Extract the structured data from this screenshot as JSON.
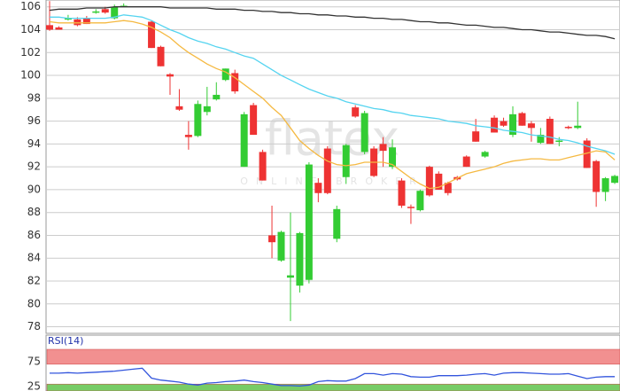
{
  "chart_data": [
    {
      "type": "candlestick",
      "watermark": "flatex",
      "watermark_sub": "ONLINE BROKER",
      "up_color": "#33cc33",
      "down_color": "#ee3333",
      "ylim": [
        77.5,
        106.6
      ],
      "yticks": [
        78,
        80,
        82,
        84,
        86,
        88,
        90,
        92,
        94,
        96,
        98,
        100,
        102,
        104,
        106
      ],
      "grid": true,
      "open": [
        104.4,
        104.2,
        104.9,
        104.9,
        105.0,
        105.6,
        105.8,
        105.0,
        106.1,
        null,
        null,
        104.7,
        102.5,
        100.1,
        97.3,
        94.8,
        94.7,
        96.8,
        97.9,
        99.6,
        100.2,
        92.0,
        97.4,
        93.3,
        86.0,
        83.8,
        82.3,
        81.6,
        82.1,
        90.6,
        93.6,
        85.7,
        91.1,
        97.2,
        93.3,
        93.6,
        94.0,
        92.0,
        90.8,
        88.5,
        88.2,
        92.0,
        91.4,
        90.6,
        91.1,
        92.9,
        95.1,
        92.9,
        96.3,
        96.0,
        94.8,
        96.7,
        95.8,
        94.1,
        96.2,
        94.3,
        95.5,
        95.4,
        94.3,
        92.5,
        89.8,
        90.6
      ],
      "high": [
        106.5,
        104.3,
        105.3,
        105.1,
        105.2,
        105.8,
        106.0,
        106.2,
        106.3,
        null,
        null,
        104.8,
        102.6,
        100.2,
        98.8,
        96.0,
        97.8,
        99.0,
        99.4,
        100.6,
        100.5,
        96.8,
        97.6,
        93.5,
        88.6,
        86.4,
        88.0,
        86.3,
        92.4,
        91.0,
        93.8,
        88.6,
        94.0,
        97.4,
        96.9,
        93.8,
        94.6,
        94.4,
        91.0,
        88.7,
        90.0,
        92.1,
        91.6,
        90.7,
        91.2,
        93.0,
        96.2,
        93.4,
        96.5,
        96.3,
        97.3,
        96.8,
        96.0,
        95.4,
        96.4,
        94.6,
        95.6,
        97.7,
        94.5,
        92.6,
        91.1,
        91.3
      ],
      "low": [
        103.9,
        104.0,
        104.8,
        104.3,
        104.5,
        105.4,
        105.4,
        104.9,
        106.0,
        null,
        null,
        102.4,
        100.8,
        98.3,
        96.9,
        93.5,
        94.6,
        96.5,
        97.8,
        99.5,
        98.4,
        92.0,
        94.8,
        90.8,
        84.0,
        83.7,
        78.5,
        81.0,
        81.8,
        88.9,
        89.6,
        85.4,
        90.5,
        96.3,
        93.1,
        91.1,
        92.0,
        91.8,
        88.4,
        87.0,
        88.1,
        89.4,
        90.0,
        89.5,
        90.8,
        92.0,
        94.2,
        92.8,
        95.0,
        95.5,
        94.6,
        95.6,
        94.2,
        94.0,
        94.0,
        93.8,
        95.3,
        95.3,
        91.9,
        88.5,
        89.0,
        90.5
      ],
      "close": [
        104.0,
        104.0,
        105.0,
        104.4,
        104.5,
        105.6,
        105.5,
        106.0,
        106.1,
        null,
        null,
        102.4,
        100.8,
        99.9,
        97.0,
        94.6,
        97.5,
        97.3,
        98.3,
        100.6,
        98.6,
        96.6,
        94.8,
        90.8,
        85.4,
        86.3,
        82.5,
        86.2,
        92.2,
        89.7,
        89.7,
        88.3,
        93.9,
        96.4,
        96.7,
        91.2,
        93.4,
        93.7,
        88.6,
        88.4,
        89.9,
        89.5,
        90.0,
        89.7,
        90.9,
        92.0,
        94.2,
        93.3,
        95.0,
        95.6,
        96.6,
        95.6,
        95.4,
        94.8,
        94.0,
        94.3,
        95.4,
        95.6,
        91.9,
        89.8,
        91.0,
        91.2
      ],
      "series": [
        {
          "color": "#333333",
          "values": [
            105.7,
            105.8,
            105.8,
            105.8,
            105.9,
            105.9,
            105.9,
            106.0,
            106.0,
            106.0,
            106.0,
            106.0,
            106.0,
            105.9,
            105.9,
            105.9,
            105.9,
            105.9,
            105.8,
            105.8,
            105.8,
            105.7,
            105.7,
            105.6,
            105.6,
            105.5,
            105.5,
            105.4,
            105.4,
            105.3,
            105.3,
            105.2,
            105.2,
            105.1,
            105.1,
            105.0,
            105.0,
            104.9,
            104.9,
            104.8,
            104.7,
            104.7,
            104.6,
            104.6,
            104.5,
            104.4,
            104.4,
            104.3,
            104.2,
            104.2,
            104.1,
            104.0,
            104.0,
            103.9,
            103.8,
            103.8,
            103.7,
            103.6,
            103.5,
            103.5,
            103.4,
            103.2
          ]
        },
        {
          "color": "#55d4f0",
          "values": [
            105.1,
            105.1,
            105.0,
            105.0,
            105.0,
            105.0,
            105.0,
            105.1,
            105.3,
            105.2,
            105.1,
            104.8,
            104.4,
            104.0,
            103.7,
            103.3,
            103.0,
            102.8,
            102.5,
            102.3,
            102.0,
            101.7,
            101.5,
            101.0,
            100.5,
            100.0,
            99.6,
            99.2,
            98.8,
            98.5,
            98.2,
            98.0,
            97.7,
            97.5,
            97.3,
            97.1,
            97.0,
            96.8,
            96.7,
            96.5,
            96.4,
            96.3,
            96.2,
            96.0,
            95.9,
            95.8,
            95.6,
            95.5,
            95.4,
            95.2,
            95.1,
            95.0,
            94.8,
            94.7,
            94.6,
            94.4,
            94.3,
            94.1,
            93.8,
            93.6,
            93.4,
            93.1
          ]
        },
        {
          "color": "#f5b942",
          "values": [
            104.7,
            104.6,
            104.6,
            104.6,
            104.6,
            104.6,
            104.6,
            104.7,
            104.8,
            104.7,
            104.5,
            104.2,
            103.8,
            103.3,
            102.6,
            102.0,
            101.5,
            101.0,
            100.6,
            100.3,
            99.8,
            99.2,
            98.6,
            98.0,
            97.2,
            96.5,
            95.4,
            94.3,
            93.6,
            93.0,
            92.5,
            92.2,
            92.1,
            92.2,
            92.4,
            92.4,
            92.4,
            92.2,
            91.6,
            91.0,
            90.5,
            90.1,
            90.2,
            90.6,
            91.0,
            91.4,
            91.6,
            91.8,
            92.0,
            92.3,
            92.5,
            92.6,
            92.7,
            92.7,
            92.6,
            92.6,
            92.8,
            93.0,
            93.2,
            93.4,
            93.3,
            92.6
          ]
        }
      ]
    },
    {
      "type": "line",
      "title": "RSI(14)",
      "ylim": [
        0,
        100
      ],
      "yticks": [
        25,
        75
      ],
      "bands": [
        {
          "from": 70,
          "to": 100,
          "color": "#f29090"
        },
        {
          "from": 0,
          "to": 30,
          "color": "#77cc66"
        }
      ],
      "series": [
        {
          "color": "#3355dd",
          "values": [
            52,
            52,
            53,
            52,
            53,
            54,
            55,
            56,
            58,
            60,
            62,
            42,
            38,
            36,
            34,
            30,
            28,
            32,
            33,
            35,
            36,
            38,
            35,
            33,
            30,
            27,
            27,
            26,
            28,
            35,
            37,
            36,
            36,
            41,
            51,
            51,
            48,
            51,
            50,
            45,
            44,
            44,
            47,
            47,
            47,
            48,
            50,
            51,
            48,
            52,
            53,
            53,
            52,
            51,
            50,
            50,
            51,
            46,
            41,
            44,
            45,
            45
          ]
        }
      ]
    }
  ]
}
